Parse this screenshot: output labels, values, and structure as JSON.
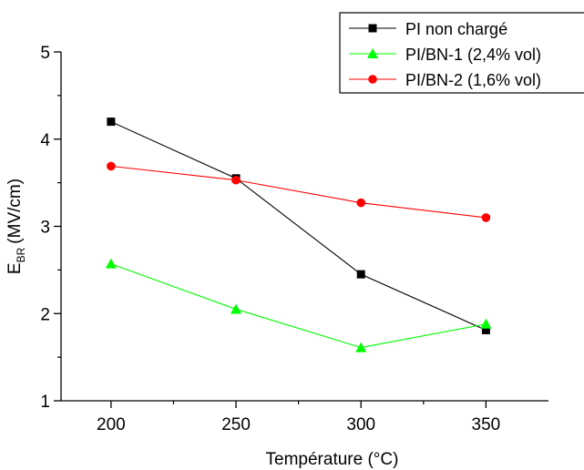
{
  "chart_data": {
    "type": "line",
    "x": [
      200,
      250,
      300,
      350
    ],
    "xlabel": "Température (°C)",
    "ylabel_main": "E",
    "ylabel_sub": "BR",
    "ylabel_unit": "(MV/cm)",
    "xlim": [
      180,
      375
    ],
    "ylim": [
      1,
      5
    ],
    "xticks": [
      200,
      250,
      300,
      350
    ],
    "yticks": [
      1,
      2,
      3,
      4,
      5
    ],
    "grid": false,
    "legend_position": "top-right",
    "series": [
      {
        "name": "PI non chargé",
        "marker": "square",
        "color": "#000000",
        "values": [
          4.2,
          3.55,
          2.45,
          1.81
        ]
      },
      {
        "name": "PI/BN-1 (2,4% vol)",
        "marker": "triangle",
        "color": "#00ff00",
        "values": [
          2.57,
          2.05,
          1.61,
          1.88
        ]
      },
      {
        "name": "PI/BN-2 (1,6% vol)",
        "marker": "circle",
        "color": "#ff0000",
        "values": [
          3.69,
          3.53,
          3.27,
          3.1
        ]
      }
    ]
  }
}
